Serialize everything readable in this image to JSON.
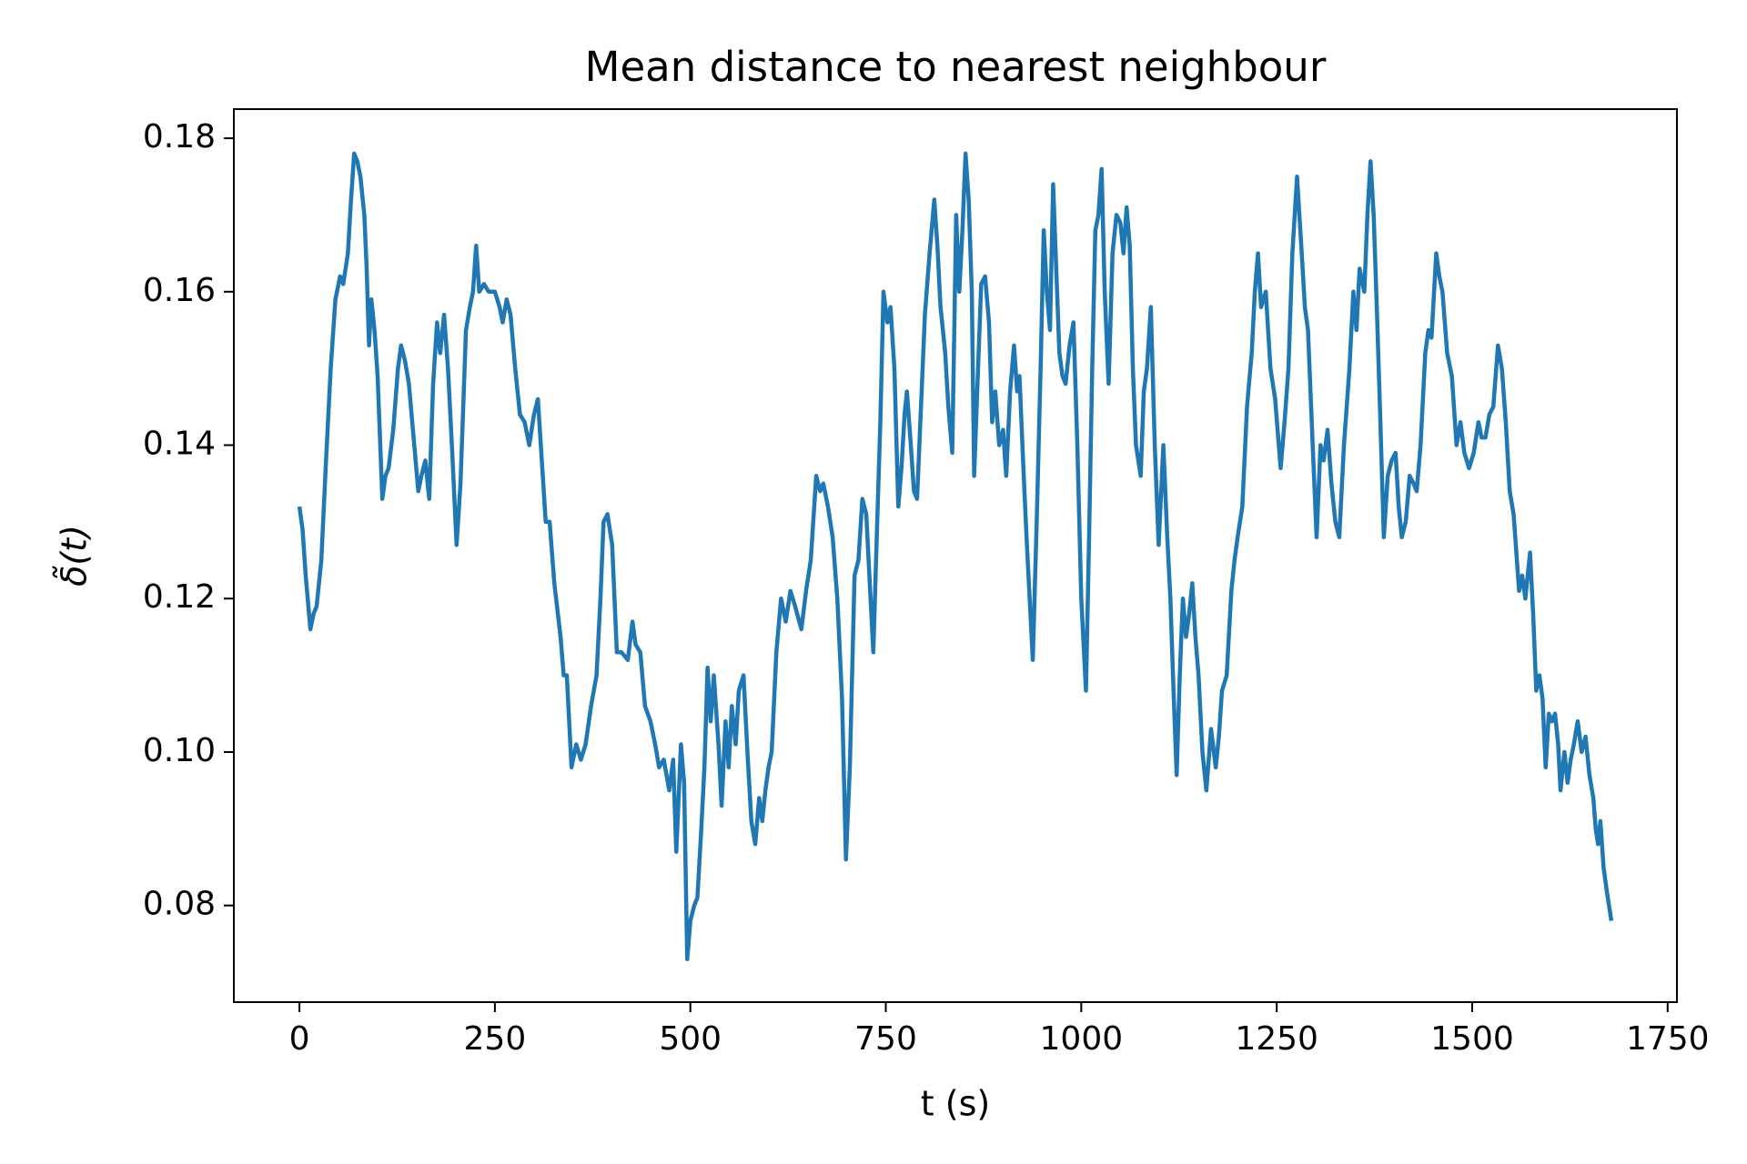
{
  "chart_data": {
    "type": "line",
    "title": "Mean distance to nearest neighbour",
    "xlabel": "t (s)",
    "ylabel": "δ̃(t)",
    "color": "#1f77b4",
    "x": [
      0,
      4,
      8,
      14,
      18,
      22,
      28,
      34,
      40,
      46,
      52,
      56,
      62,
      66,
      70,
      74,
      78,
      83,
      86,
      89,
      92,
      96,
      100,
      106,
      110,
      114,
      120,
      126,
      130,
      135,
      140,
      146,
      152,
      156,
      161,
      166,
      171,
      176,
      180,
      185,
      190,
      195,
      201,
      206,
      213,
      218,
      222,
      226,
      230,
      236,
      242,
      250,
      256,
      260,
      265,
      270,
      276,
      282,
      288,
      294,
      300,
      305,
      310,
      315,
      320,
      326,
      334,
      338,
      342,
      348,
      354,
      360,
      366,
      373,
      380,
      385,
      389,
      394,
      400,
      406,
      412,
      420,
      426,
      430,
      436,
      442,
      449,
      455,
      460,
      466,
      473,
      478,
      482,
      488,
      492,
      496,
      500,
      505,
      509,
      514,
      518,
      522,
      526,
      530,
      536,
      540,
      545,
      549,
      553,
      558,
      562,
      568,
      573,
      578,
      583,
      588,
      592,
      596,
      600,
      604,
      610,
      616,
      622,
      628,
      634,
      642,
      648,
      654,
      661,
      666,
      670,
      676,
      682,
      688,
      694,
      699,
      704,
      710,
      715,
      720,
      725,
      730,
      734,
      739,
      743,
      747,
      752,
      756,
      761,
      766,
      770,
      774,
      777,
      782,
      786,
      790,
      795,
      800,
      806,
      812,
      816,
      820,
      826,
      830,
      835,
      840,
      844,
      848,
      852,
      856,
      860,
      863,
      868,
      872,
      877,
      882,
      886,
      890,
      895,
      900,
      904,
      909,
      914,
      918,
      921,
      926,
      930,
      934,
      938,
      943,
      948,
      952,
      956,
      960,
      964,
      968,
      972,
      976,
      980,
      985,
      990,
      995,
      1000,
      1006,
      1010,
      1014,
      1018,
      1022,
      1026,
      1030,
      1035,
      1040,
      1045,
      1050,
      1054,
      1058,
      1062,
      1066,
      1070,
      1076,
      1080,
      1084,
      1089,
      1094,
      1099,
      1105,
      1110,
      1114,
      1118,
      1122,
      1126,
      1130,
      1134,
      1138,
      1142,
      1146,
      1150,
      1155,
      1160,
      1166,
      1172,
      1176,
      1180,
      1186,
      1192,
      1196,
      1200,
      1206,
      1212,
      1218,
      1222,
      1226,
      1230,
      1236,
      1242,
      1248,
      1255,
      1260,
      1265,
      1270,
      1276,
      1282,
      1286,
      1290,
      1296,
      1301,
      1306,
      1310,
      1315,
      1320,
      1325,
      1330,
      1336,
      1343,
      1348,
      1352,
      1356,
      1362,
      1366,
      1370,
      1374,
      1378,
      1382,
      1387,
      1392,
      1397,
      1402,
      1406,
      1410,
      1415,
      1420,
      1425,
      1429,
      1434,
      1440,
      1444,
      1448,
      1454,
      1458,
      1462,
      1468,
      1474,
      1480,
      1485,
      1490,
      1496,
      1502,
      1508,
      1512,
      1517,
      1522,
      1527,
      1533,
      1538,
      1543,
      1548,
      1553,
      1560,
      1564,
      1568,
      1574,
      1578,
      1582,
      1586,
      1590,
      1594,
      1598,
      1602,
      1606,
      1610,
      1613,
      1618,
      1622,
      1626,
      1630,
      1635,
      1640,
      1645,
      1650,
      1655,
      1658,
      1661,
      1664,
      1668,
      1672,
      1675,
      1678
    ],
    "values": [
      0.132,
      0.129,
      0.123,
      0.116,
      0.118,
      0.119,
      0.125,
      0.138,
      0.15,
      0.159,
      0.162,
      0.161,
      0.165,
      0.172,
      0.178,
      0.177,
      0.175,
      0.17,
      0.163,
      0.153,
      0.159,
      0.155,
      0.149,
      0.133,
      0.136,
      0.137,
      0.142,
      0.15,
      0.153,
      0.151,
      0.148,
      0.141,
      0.134,
      0.136,
      0.138,
      0.133,
      0.148,
      0.156,
      0.152,
      0.157,
      0.15,
      0.14,
      0.127,
      0.135,
      0.155,
      0.158,
      0.16,
      0.166,
      0.16,
      0.161,
      0.16,
      0.16,
      0.158,
      0.156,
      0.159,
      0.157,
      0.15,
      0.144,
      0.143,
      0.14,
      0.144,
      0.146,
      0.138,
      0.13,
      0.13,
      0.122,
      0.115,
      0.11,
      0.11,
      0.098,
      0.101,
      0.099,
      0.101,
      0.106,
      0.11,
      0.12,
      0.13,
      0.131,
      0.127,
      0.113,
      0.113,
      0.112,
      0.117,
      0.114,
      0.113,
      0.106,
      0.104,
      0.101,
      0.098,
      0.099,
      0.095,
      0.099,
      0.087,
      0.101,
      0.096,
      0.073,
      0.078,
      0.08,
      0.081,
      0.09,
      0.098,
      0.111,
      0.104,
      0.11,
      0.101,
      0.093,
      0.104,
      0.098,
      0.106,
      0.101,
      0.108,
      0.11,
      0.1,
      0.091,
      0.088,
      0.094,
      0.091,
      0.095,
      0.098,
      0.1,
      0.113,
      0.12,
      0.117,
      0.121,
      0.119,
      0.116,
      0.121,
      0.125,
      0.136,
      0.134,
      0.135,
      0.132,
      0.128,
      0.12,
      0.107,
      0.086,
      0.098,
      0.123,
      0.125,
      0.133,
      0.131,
      0.121,
      0.113,
      0.13,
      0.143,
      0.16,
      0.156,
      0.158,
      0.15,
      0.132,
      0.137,
      0.144,
      0.147,
      0.14,
      0.134,
      0.133,
      0.145,
      0.157,
      0.165,
      0.172,
      0.166,
      0.158,
      0.152,
      0.145,
      0.139,
      0.17,
      0.16,
      0.168,
      0.178,
      0.172,
      0.16,
      0.136,
      0.15,
      0.161,
      0.162,
      0.156,
      0.143,
      0.147,
      0.14,
      0.142,
      0.136,
      0.147,
      0.153,
      0.147,
      0.149,
      0.137,
      0.128,
      0.12,
      0.112,
      0.13,
      0.15,
      0.168,
      0.16,
      0.155,
      0.174,
      0.163,
      0.152,
      0.149,
      0.148,
      0.153,
      0.156,
      0.14,
      0.12,
      0.108,
      0.128,
      0.15,
      0.168,
      0.17,
      0.176,
      0.16,
      0.148,
      0.165,
      0.17,
      0.169,
      0.165,
      0.171,
      0.166,
      0.15,
      0.14,
      0.136,
      0.147,
      0.15,
      0.158,
      0.14,
      0.127,
      0.14,
      0.128,
      0.12,
      0.108,
      0.097,
      0.11,
      0.12,
      0.115,
      0.118,
      0.122,
      0.115,
      0.11,
      0.1,
      0.095,
      0.103,
      0.098,
      0.102,
      0.108,
      0.11,
      0.121,
      0.125,
      0.128,
      0.132,
      0.145,
      0.152,
      0.16,
      0.165,
      0.158,
      0.16,
      0.15,
      0.146,
      0.137,
      0.143,
      0.15,
      0.165,
      0.175,
      0.165,
      0.158,
      0.155,
      0.14,
      0.128,
      0.14,
      0.138,
      0.142,
      0.135,
      0.13,
      0.128,
      0.14,
      0.15,
      0.16,
      0.155,
      0.163,
      0.16,
      0.17,
      0.177,
      0.17,
      0.158,
      0.145,
      0.128,
      0.136,
      0.138,
      0.139,
      0.132,
      0.128,
      0.13,
      0.136,
      0.135,
      0.134,
      0.14,
      0.152,
      0.155,
      0.154,
      0.165,
      0.162,
      0.16,
      0.152,
      0.149,
      0.14,
      0.143,
      0.139,
      0.137,
      0.139,
      0.143,
      0.141,
      0.141,
      0.144,
      0.145,
      0.153,
      0.15,
      0.143,
      0.134,
      0.131,
      0.121,
      0.123,
      0.12,
      0.126,
      0.118,
      0.108,
      0.11,
      0.107,
      0.098,
      0.105,
      0.104,
      0.105,
      0.101,
      0.095,
      0.1,
      0.096,
      0.099,
      0.101,
      0.104,
      0.1,
      0.102,
      0.097,
      0.094,
      0.09,
      0.088,
      0.091,
      0.085,
      0.082,
      0.08,
      0.078
    ],
    "xlim": [
      -83.9,
      1761.9
    ],
    "ylim": [
      0.0674,
      0.1838
    ],
    "xticks": [
      0,
      250,
      500,
      750,
      1000,
      1250,
      1500,
      1750
    ],
    "yticks": [
      0.08,
      {
        "value": 0.1,
        "label": "0.10"
      },
      0.12,
      0.14,
      0.16,
      0.18
    ]
  }
}
